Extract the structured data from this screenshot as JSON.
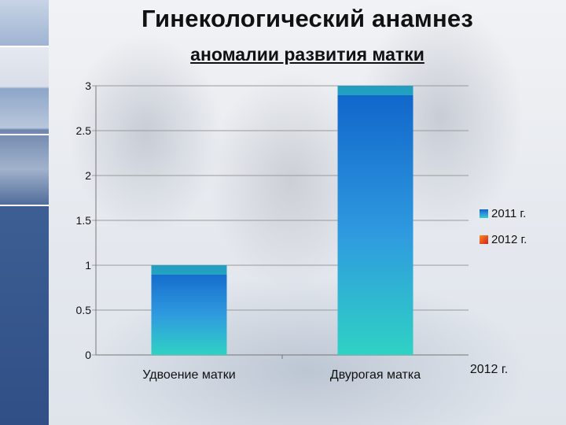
{
  "slide": {
    "title": "Гинекологический анамнез",
    "subtitle": "аномалии развития матки"
  },
  "chart_data": {
    "type": "bar",
    "title": "",
    "xlabel": "",
    "ylabel": "",
    "categories": [
      "Удвоение матки",
      "Двурогая матка"
    ],
    "series": [
      {
        "name": "2011 г.",
        "values": [
          1,
          3
        ],
        "color": "#1e7fd8"
      },
      {
        "name": "2012 г.",
        "values": [
          0,
          0
        ],
        "color": "#e0302a"
      }
    ],
    "ylim": [
      0,
      3
    ],
    "yticks": [
      "0",
      "0.5",
      "1",
      "1.5",
      "2",
      "2.5",
      "3"
    ],
    "grid": true,
    "legend_position": "right",
    "stray_label": "2012 г."
  },
  "colors": {
    "bar_top": "#0f63c9",
    "bar_mid": "#2f9adf",
    "bar_bottom": "#2fd2c4",
    "grid": "#9a9a9a",
    "sidebar": "#3a5c93"
  }
}
